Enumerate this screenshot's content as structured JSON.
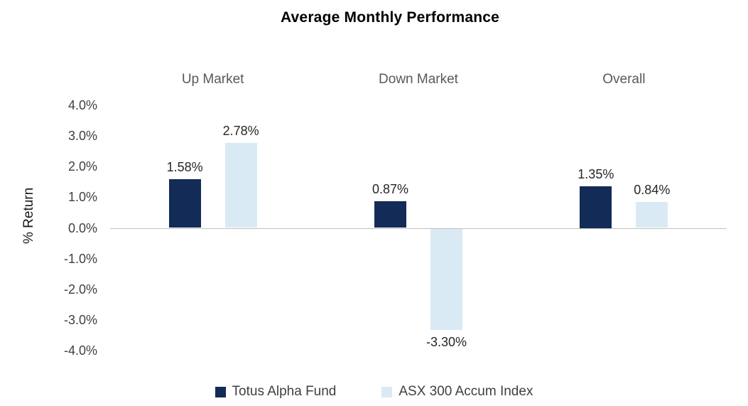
{
  "chart_data": {
    "type": "bar",
    "title": "Average Monthly Performance",
    "ylabel": "% Return",
    "categories": [
      "Up Market",
      "Down Market",
      "Overall"
    ],
    "series": [
      {
        "name": "Totus Alpha Fund",
        "color": "#132b57",
        "values": [
          1.58,
          0.87,
          1.35
        ],
        "labels": [
          "1.58%",
          "0.87%",
          "1.35%"
        ]
      },
      {
        "name": "ASX 300 Accum Index",
        "color": "#daeaf5",
        "values": [
          2.78,
          -3.3,
          0.84
        ],
        "labels": [
          "2.78%",
          "-3.30%",
          "0.84%"
        ]
      }
    ],
    "ylim": [
      -4,
      4
    ],
    "ytick_step": 1,
    "yticks": [
      "4.0%",
      "3.0%",
      "2.0%",
      "1.0%",
      "0.0%",
      "-1.0%",
      "-2.0%",
      "-3.0%",
      "-4.0%"
    ],
    "grid": false,
    "legend_position": "bottom",
    "axis_line_color": "#bfbfbf"
  }
}
